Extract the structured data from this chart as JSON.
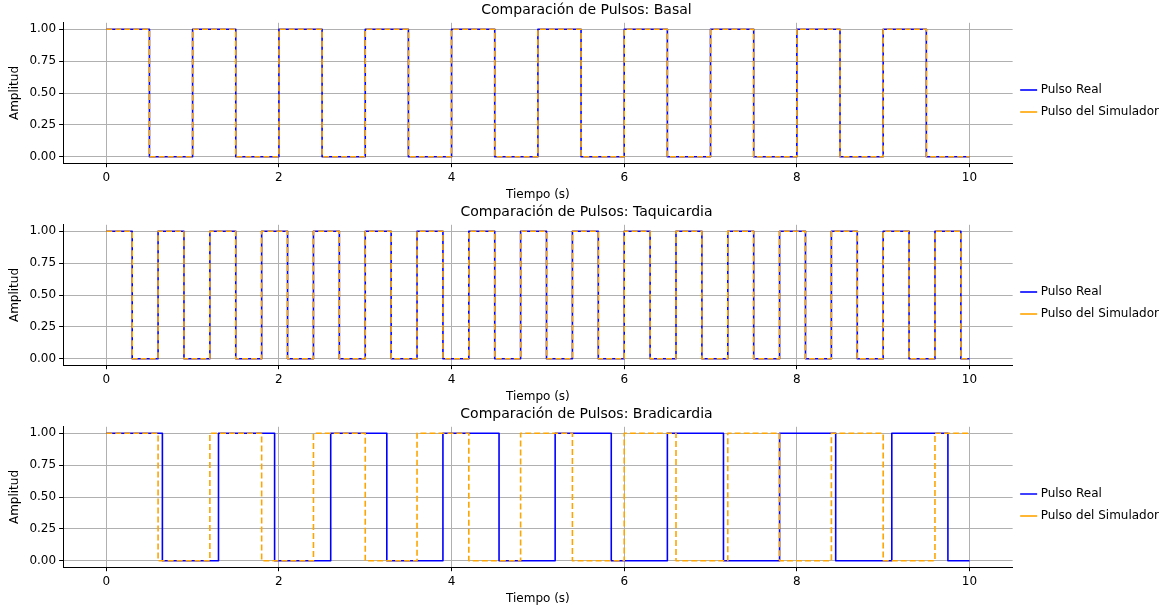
{
  "chart_data": [
    {
      "type": "step",
      "title": "Comparación de Pulsos: Basal",
      "xlabel": "Tiempo (s)",
      "ylabel": "Amplitud",
      "xlim": [
        -0.5,
        10.5
      ],
      "xticks": [
        0,
        2,
        4,
        6,
        8,
        10
      ],
      "ylim": [
        -0.05,
        1.05
      ],
      "yticks": [
        {
          "value": 0,
          "label": "0.00"
        },
        {
          "value": 0.25,
          "label": "0.25"
        },
        {
          "value": 0.5,
          "label": "0.50"
        },
        {
          "value": 0.75,
          "label": "0.75"
        },
        {
          "value": 1,
          "label": "1.00"
        }
      ],
      "grid": true,
      "legend": "right",
      "series": [
        {
          "name": "Pulso Real",
          "color": "#0000ff",
          "line_style": "solid",
          "x": [
            0,
            0.5,
            1,
            1.5,
            2,
            2.5,
            3,
            3.5,
            4,
            4.5,
            5,
            5.5,
            6,
            6.5,
            7,
            7.5,
            8,
            8.5,
            9,
            9.5,
            10
          ],
          "values": [
            1,
            0,
            1,
            0,
            1,
            0,
            1,
            0,
            1,
            0,
            1,
            0,
            1,
            0,
            1,
            0,
            1,
            0,
            1,
            0,
            0
          ]
        },
        {
          "name": "Pulso del Simulador",
          "color": "#ffa500",
          "line_style": "dashed",
          "x": [
            0,
            0.5,
            1,
            1.5,
            2,
            2.5,
            3,
            3.5,
            4,
            4.5,
            5,
            5.5,
            6,
            6.5,
            7,
            7.5,
            8,
            8.5,
            9,
            9.5,
            10
          ],
          "values": [
            1,
            0,
            1,
            0,
            1,
            0,
            1,
            0,
            1,
            0,
            1,
            0,
            1,
            0,
            1,
            0,
            1,
            0,
            1,
            0,
            0
          ]
        }
      ]
    },
    {
      "type": "step",
      "title": "Comparación de Pulsos: Taquicardia",
      "xlabel": "Tiempo (s)",
      "ylabel": "Amplitud",
      "xlim": [
        -0.5,
        10.5
      ],
      "xticks": [
        0,
        2,
        4,
        6,
        8,
        10
      ],
      "ylim": [
        -0.05,
        1.05
      ],
      "yticks": [
        {
          "value": 0,
          "label": "0.00"
        },
        {
          "value": 0.25,
          "label": "0.25"
        },
        {
          "value": 0.5,
          "label": "0.50"
        },
        {
          "value": 0.75,
          "label": "0.75"
        },
        {
          "value": 1,
          "label": "1.00"
        }
      ],
      "grid": true,
      "legend": "right",
      "series": [
        {
          "name": "Pulso Real",
          "color": "#0000ff",
          "line_style": "solid",
          "x": [
            0,
            0.3,
            0.6,
            0.9,
            1.2,
            1.5,
            1.8,
            2.1,
            2.4,
            2.7,
            3,
            3.3,
            3.6,
            3.9,
            4.2,
            4.5,
            4.8,
            5.1,
            5.4,
            5.7,
            6,
            6.3,
            6.6,
            6.9,
            7.2,
            7.5,
            7.8,
            8.1,
            8.4,
            8.7,
            9,
            9.3,
            9.6,
            9.9,
            10
          ],
          "values": [
            1,
            0,
            1,
            0,
            1,
            0,
            1,
            0,
            1,
            0,
            1,
            0,
            1,
            0,
            1,
            0,
            1,
            0,
            1,
            0,
            1,
            0,
            1,
            0,
            1,
            0,
            1,
            0,
            1,
            0,
            1,
            0,
            1,
            0,
            0
          ]
        },
        {
          "name": "Pulso del Simulador",
          "color": "#ffa500",
          "line_style": "dashed",
          "x": [
            0,
            0.3,
            0.6,
            0.9,
            1.2,
            1.5,
            1.8,
            2.1,
            2.4,
            2.7,
            3,
            3.3,
            3.6,
            3.9,
            4.2,
            4.5,
            4.8,
            5.1,
            5.4,
            5.7,
            6,
            6.3,
            6.6,
            6.9,
            7.2,
            7.5,
            7.8,
            8.1,
            8.4,
            8.7,
            9,
            9.3,
            9.6,
            9.9,
            10
          ],
          "values": [
            1,
            0,
            1,
            0,
            1,
            0,
            1,
            0,
            1,
            0,
            1,
            0,
            1,
            0,
            1,
            0,
            1,
            0,
            1,
            0,
            1,
            0,
            1,
            0,
            1,
            0,
            1,
            0,
            1,
            0,
            1,
            0,
            1,
            0,
            0
          ]
        }
      ]
    },
    {
      "type": "step",
      "title": "Comparación de Pulsos: Bradicardia",
      "xlabel": "Tiempo (s)",
      "ylabel": "Amplitud",
      "xlim": [
        -0.5,
        10.5
      ],
      "xticks": [
        0,
        2,
        4,
        6,
        8,
        10
      ],
      "ylim": [
        -0.05,
        1.05
      ],
      "yticks": [
        {
          "value": 0,
          "label": "0.00"
        },
        {
          "value": 0.25,
          "label": "0.25"
        },
        {
          "value": 0.5,
          "label": "0.50"
        },
        {
          "value": 0.75,
          "label": "0.75"
        },
        {
          "value": 1,
          "label": "1.00"
        }
      ],
      "grid": true,
      "legend": "right",
      "series": [
        {
          "name": "Pulso Real",
          "color": "#0000ff",
          "line_style": "solid",
          "x": [
            0,
            0.65,
            1.3,
            1.95,
            2.6,
            3.25,
            3.9,
            4.55,
            5.2,
            5.85,
            6.5,
            7.15,
            7.8,
            8.45,
            9.1,
            9.75,
            10
          ],
          "values": [
            1,
            0,
            1,
            0,
            1,
            0,
            1,
            0,
            1,
            0,
            1,
            0,
            1,
            0,
            1,
            0,
            0
          ]
        },
        {
          "name": "Pulso del Simulador",
          "color": "#ffa500",
          "line_style": "dashed",
          "x": [
            0,
            0.6,
            1.2,
            1.8,
            2.4,
            3,
            3.6,
            4.2,
            4.8,
            5.4,
            6,
            6.6,
            7.2,
            7.8,
            8.4,
            9,
            9.6,
            10
          ],
          "values": [
            1,
            0,
            1,
            0,
            1,
            0,
            1,
            0,
            1,
            0,
            1,
            0,
            1,
            0,
            1,
            0,
            1,
            1
          ]
        }
      ]
    }
  ]
}
